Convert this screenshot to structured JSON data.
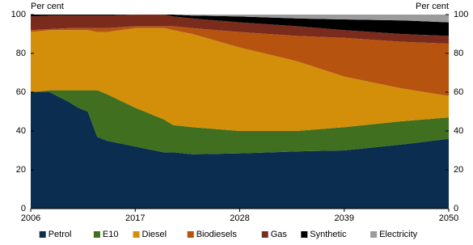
{
  "chart_data": {
    "type": "stacked-area",
    "y_label_left": "Per cent",
    "y_label_right": "Per cent",
    "x": [
      2006,
      2008,
      2010,
      2011,
      2012,
      2013,
      2014,
      2017,
      2020,
      2021,
      2023,
      2028,
      2034,
      2039,
      2045,
      2050
    ],
    "xlim": [
      2006,
      2050
    ],
    "xticks": [
      2006,
      2017,
      2028,
      2039,
      2050
    ],
    "ylim": [
      0,
      100
    ],
    "yticks": [
      0,
      20,
      40,
      60,
      80,
      100
    ],
    "y2lim": [
      0,
      100
    ],
    "y2ticks": [
      0,
      20,
      40,
      60,
      80,
      100
    ],
    "legend": "bottom",
    "series": [
      {
        "name": "Petrol",
        "color": "#0b2d4f",
        "values": [
          60,
          60,
          55,
          52,
          50,
          37,
          35,
          32,
          29,
          29,
          28,
          28.5,
          29.5,
          30,
          33,
          36
        ]
      },
      {
        "name": "E10",
        "color": "#3f6f1f",
        "values": [
          0,
          1,
          6,
          9,
          11,
          24,
          24,
          20,
          17,
          14,
          14,
          11.5,
          10.5,
          12,
          12,
          11
        ]
      },
      {
        "name": "Diesel",
        "color": "#d38f0a",
        "values": [
          31,
          31,
          31,
          31,
          31,
          30,
          32,
          41,
          47,
          49,
          48,
          43,
          36,
          26,
          17,
          11
        ]
      },
      {
        "name": "Biodiesels",
        "color": "#b5530f",
        "values": [
          1,
          0.5,
          1,
          1,
          1,
          2,
          2,
          1,
          1,
          2,
          3,
          8,
          13,
          20,
          24,
          27
        ]
      },
      {
        "name": "Gas",
        "color": "#7a2b1c",
        "values": [
          7,
          7,
          6.5,
          6.5,
          6.5,
          6.5,
          6.5,
          6,
          6,
          5,
          5,
          5,
          5,
          4,
          4,
          4
        ]
      },
      {
        "name": "Synthetic",
        "color": "#000000",
        "values": [
          1,
          0.5,
          0.5,
          0.5,
          0.5,
          0.5,
          0.5,
          0,
          0,
          1,
          1.5,
          3,
          4,
          5.5,
          7,
          7
        ]
      },
      {
        "name": "Electricity",
        "color": "#9b9b9b",
        "values": [
          0,
          0,
          0,
          0,
          0,
          0,
          0,
          0,
          0,
          0,
          0.5,
          1,
          2,
          2.5,
          3,
          4
        ]
      }
    ]
  }
}
